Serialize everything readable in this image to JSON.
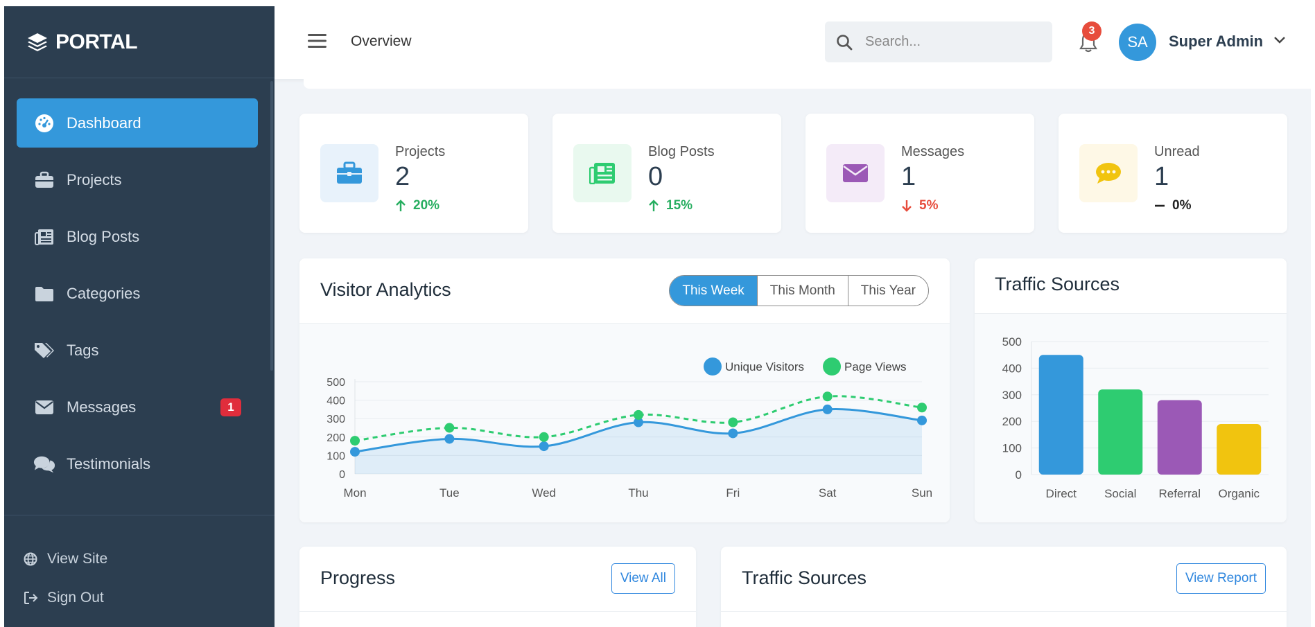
{
  "brand": {
    "name": "PORTAL"
  },
  "sidebar": {
    "items": [
      {
        "label": "Dashboard",
        "icon": "dashboard-icon"
      },
      {
        "label": "Projects",
        "icon": "briefcase-icon"
      },
      {
        "label": "Blog Posts",
        "icon": "newspaper-icon"
      },
      {
        "label": "Categories",
        "icon": "folder-icon"
      },
      {
        "label": "Tags",
        "icon": "tags-icon"
      },
      {
        "label": "Messages",
        "icon": "envelope-icon",
        "badge": "1"
      },
      {
        "label": "Testimonials",
        "icon": "comments-icon"
      }
    ],
    "footer": [
      {
        "label": "View Site",
        "icon": "globe-icon"
      },
      {
        "label": "Sign Out",
        "icon": "sign-out-icon"
      }
    ]
  },
  "header": {
    "title": "Overview",
    "search_placeholder": "Search...",
    "notifications": "3",
    "avatar_initials": "SA",
    "user_name": "Super Admin"
  },
  "stats": [
    {
      "label": "Projects",
      "value": "2",
      "change": "20%",
      "trend": "up"
    },
    {
      "label": "Blog Posts",
      "value": "0",
      "change": "15%",
      "trend": "up"
    },
    {
      "label": "Messages",
      "value": "1",
      "change": "5%",
      "trend": "down"
    },
    {
      "label": "Unread",
      "value": "1",
      "change": "0%",
      "trend": "flat"
    }
  ],
  "visitor_panel": {
    "title": "Visitor Analytics",
    "ranges": [
      "This Week",
      "This Month",
      "This Year"
    ],
    "active_range": "This Week"
  },
  "traffic_panel": {
    "title": "Traffic Sources"
  },
  "progress_panel": {
    "title": "Progress",
    "action": "View All"
  },
  "traffic_panel_2": {
    "title": "Traffic Sources",
    "action": "View Report"
  },
  "colors": {
    "sidebar": "#2c3e50",
    "accent": "#3498db",
    "green": "#2ecc71",
    "purple": "#9b59b6",
    "yellow": "#f1c40f",
    "red": "#e74c3c"
  },
  "chart_data": [
    {
      "type": "line",
      "x": [
        "Mon",
        "Tue",
        "Wed",
        "Thu",
        "Fri",
        "Sat",
        "Sun"
      ],
      "series": [
        {
          "name": "Unique Visitors",
          "values": [
            120,
            190,
            150,
            280,
            220,
            350,
            290
          ]
        },
        {
          "name": "Page Views",
          "values": [
            180,
            250,
            200,
            320,
            280,
            420,
            360
          ]
        }
      ],
      "ylim": [
        0,
        500
      ],
      "yticks": [
        0,
        100,
        200,
        300,
        400,
        500
      ],
      "legend": "top-right",
      "grid": true
    },
    {
      "type": "bar",
      "categories": [
        "Direct",
        "Social",
        "Referral",
        "Organic"
      ],
      "values": [
        450,
        320,
        280,
        190
      ],
      "ylim": [
        0,
        500
      ],
      "yticks": [
        0,
        100,
        200,
        300,
        400,
        500
      ],
      "grid": true
    }
  ]
}
